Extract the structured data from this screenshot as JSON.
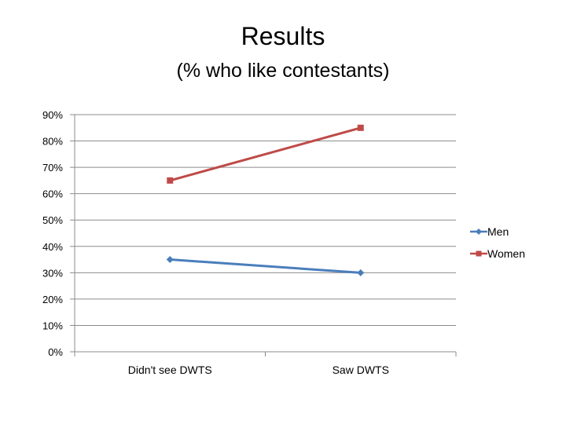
{
  "title": "Results",
  "subtitle": "(% who like contestants)",
  "chart_data": {
    "type": "line",
    "categories": [
      "Didn't see DWTS",
      "Saw DWTS"
    ],
    "series": [
      {
        "name": "Men",
        "values": [
          35,
          30
        ],
        "color": "#4a7ebb",
        "marker": "diamond"
      },
      {
        "name": "Women",
        "values": [
          65,
          85
        ],
        "color": "#be4b48",
        "marker": "square"
      }
    ],
    "ylim": [
      0,
      90
    ],
    "yticks": [
      0,
      10,
      20,
      30,
      40,
      50,
      60,
      70,
      80,
      90
    ],
    "ytick_labels": [
      "0%",
      "10%",
      "20%",
      "30%",
      "40%",
      "50%",
      "60%",
      "70%",
      "80%",
      "90%"
    ],
    "grid": true,
    "legend": "right"
  }
}
